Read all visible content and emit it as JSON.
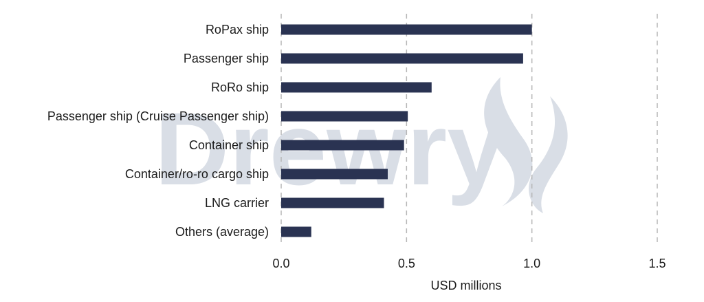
{
  "watermark": {
    "text": "Drewry",
    "color": "#d9dee6"
  },
  "chart_data": {
    "type": "bar",
    "orientation": "horizontal",
    "categories": [
      "RoPax ship",
      "Passenger ship",
      "RoRo ship",
      "Passenger ship (Cruise Passenger ship)",
      "Container ship",
      "Container/ro-ro cargo ship",
      "LNG carrier",
      "Others (average)"
    ],
    "values": [
      1.0,
      0.965,
      0.6,
      0.505,
      0.49,
      0.425,
      0.41,
      0.12
    ],
    "xlabel": "USD millions",
    "ylabel": "",
    "xlim": [
      0,
      1.5
    ],
    "ticks": [
      0,
      0.5,
      1,
      1.5
    ],
    "tick_labels": [
      "0.0",
      "0.5",
      "1.0",
      "1.5"
    ],
    "grid": "vertical dashed",
    "bar_color": "#2a3352"
  }
}
